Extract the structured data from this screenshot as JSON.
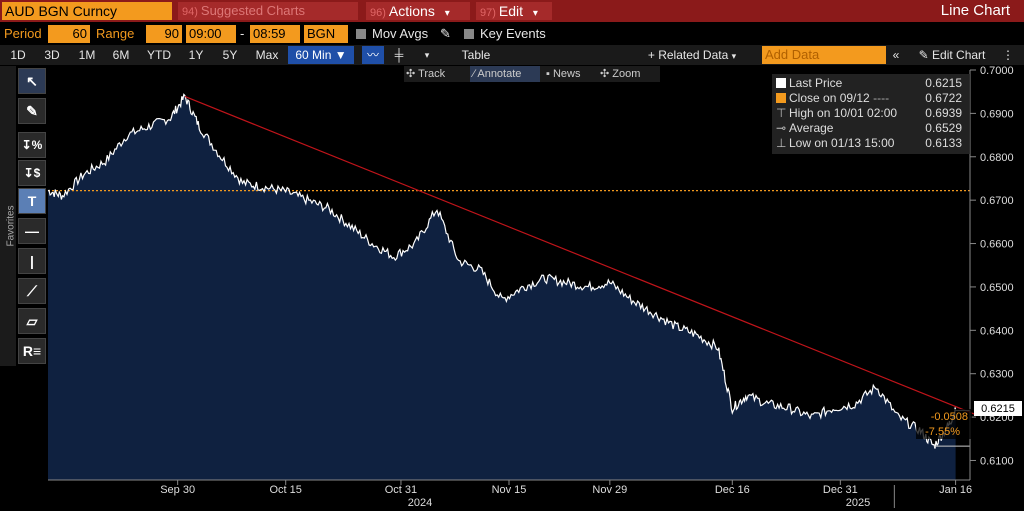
{
  "titlebar": {
    "ticker": "AUD BGN Curncy",
    "suggested_num": "94)",
    "suggested": "Suggested Charts",
    "actions_num": "96)",
    "actions": "Actions",
    "edit_num": "97)",
    "edit": "Edit",
    "chart_type": "Line Chart",
    "chevron": "▾"
  },
  "settings": {
    "period_label": "Period",
    "period_value": "60",
    "range_label": "Range",
    "range_value": "90",
    "time_from": "09:00",
    "time_sep": "-",
    "time_to": "08:59",
    "source": "BGN",
    "mov_avgs": "Mov Avgs",
    "key_events": "Key Events"
  },
  "timebar": {
    "buttons": [
      "1D",
      "3D",
      "1M",
      "6M",
      "YTD",
      "1Y",
      "5Y",
      "Max"
    ],
    "interval": "60 Min",
    "table": "Table",
    "related": "+ Related Data",
    "add_data_placeholder": "Add Data",
    "edit_chart": "Edit Chart"
  },
  "chart_tools": {
    "track": "Track",
    "annotate": "Annotate",
    "news": "News",
    "zoom": "Zoom"
  },
  "left_tools": {
    "favorites": "Favorites"
  },
  "legend": {
    "last_price_label": "Last Price",
    "last_price": "0.6215",
    "close_label": "Close on 09/12",
    "close_value": "0.6722",
    "high_label": "High on 10/01 02:00",
    "high_value": "0.6939",
    "avg_label": "Average",
    "avg_value": "0.6529",
    "low_label": "Low on 01/13 15:00",
    "low_value": "0.6133"
  },
  "colors": {
    "accent": "#f39a1e",
    "titlebar": "#8b1a1a",
    "area_fill": "#0f2140",
    "line": "#ffffff",
    "trend": "#c0141a"
  },
  "chart_data": {
    "type": "area",
    "series": [
      {
        "name": "AUD BGN Curncy",
        "x": [
          "09/12",
          "09/14",
          "09/17",
          "09/20",
          "09/23",
          "09/26",
          "09/29",
          "10/01",
          "10/03",
          "10/06",
          "10/09",
          "10/12",
          "10/15",
          "10/18",
          "10/21",
          "10/24",
          "10/27",
          "10/30",
          "11/02",
          "11/05",
          "11/08",
          "11/11",
          "11/14",
          "11/17",
          "11/20",
          "11/23",
          "11/26",
          "11/29",
          "12/02",
          "12/05",
          "12/08",
          "12/11",
          "12/14",
          "12/16",
          "12/18",
          "12/21",
          "12/24",
          "12/27",
          "12/30",
          "01/02",
          "01/05",
          "01/08",
          "01/11",
          "01/13",
          "01/15",
          "01/16"
        ],
        "values": [
          0.6722,
          0.671,
          0.676,
          0.679,
          0.685,
          0.687,
          0.689,
          0.6939,
          0.687,
          0.68,
          0.674,
          0.673,
          0.672,
          0.67,
          0.668,
          0.664,
          0.66,
          0.657,
          0.66,
          0.668,
          0.656,
          0.654,
          0.647,
          0.65,
          0.652,
          0.651,
          0.65,
          0.651,
          0.647,
          0.644,
          0.641,
          0.639,
          0.636,
          0.622,
          0.625,
          0.623,
          0.622,
          0.62,
          0.622,
          0.623,
          0.627,
          0.62,
          0.617,
          0.6133,
          0.618,
          0.6215
        ]
      }
    ],
    "reference_line": {
      "name": "Close on 09/12",
      "value": 0.6722
    },
    "trend_line": {
      "from": [
        "10/01",
        0.6939
      ],
      "to": [
        "01/16",
        0.6215
      ]
    },
    "change_labels": [
      "-0.0508",
      "-7.55%"
    ],
    "last_price_label": "0.6215",
    "x_ticks": [
      "Sep 30",
      "Oct 15",
      "Oct 31",
      "Nov 15",
      "Nov 29",
      "Dec 16",
      "Dec 31",
      "Jan 16"
    ],
    "x_tick_dates": [
      "09/30",
      "10/15",
      "10/31",
      "11/15",
      "11/29",
      "12/16",
      "12/31",
      "01/16"
    ],
    "year_labels": [
      "2024",
      "2025"
    ],
    "y_ticks": [
      0.61,
      0.62,
      0.63,
      0.64,
      0.65,
      0.66,
      0.67,
      0.68,
      0.69,
      0.7
    ],
    "ylim": [
      0.6055,
      0.7
    ],
    "grid": false,
    "legend_position": "top-right"
  }
}
